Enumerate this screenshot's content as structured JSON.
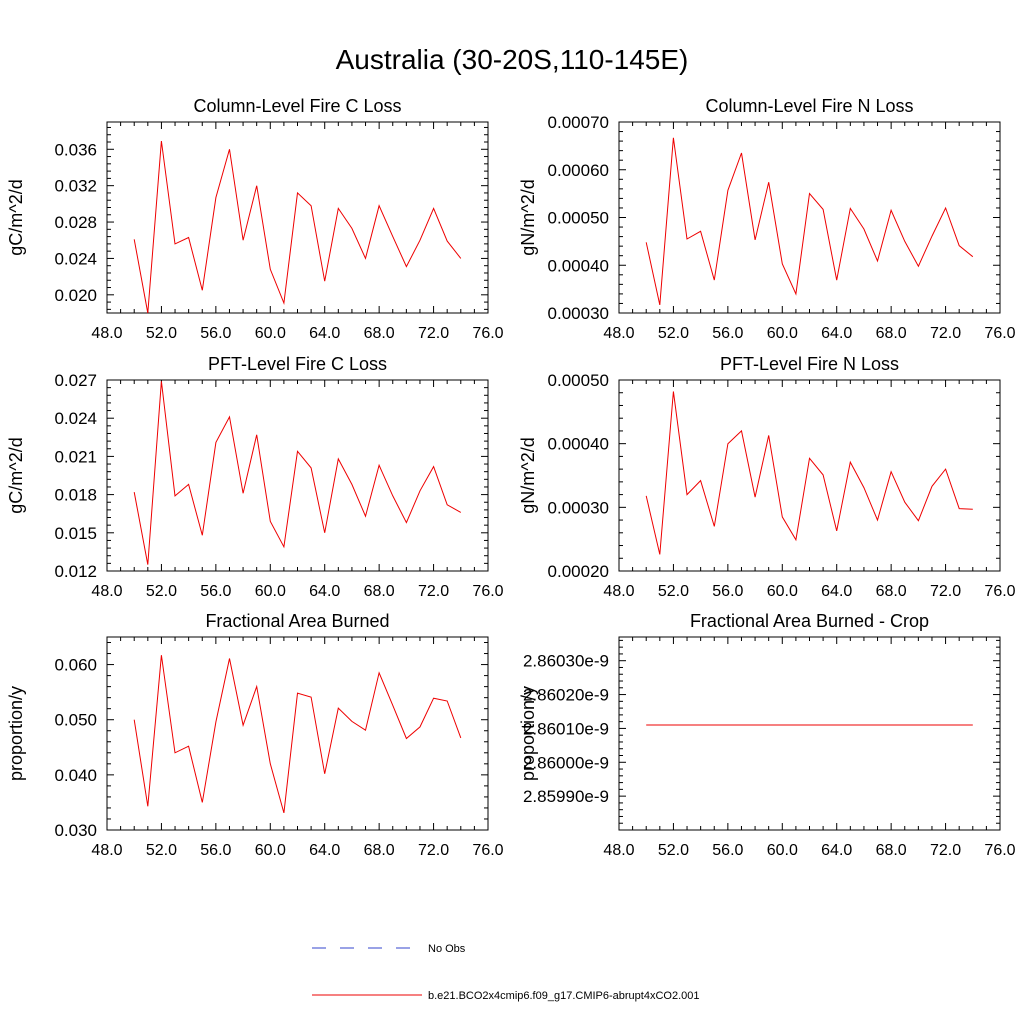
{
  "figure_title": "Australia (30-20S,110-145E)",
  "legend": {
    "obs_label": "No Obs",
    "obs_color": "#3344cc",
    "model_label": "b.e21.BCO2x4cmip6.f09_g17.CMIP6-abrupt4xCO2.001",
    "model_color": "#ee0000"
  },
  "chart_data": [
    {
      "type": "line",
      "title": "Column-Level Fire C Loss",
      "ylabel": "gC/m^2/d",
      "xlim": [
        48,
        76
      ],
      "ylim": [
        0.018,
        0.039
      ],
      "xticks": [
        48,
        52,
        56,
        60,
        64,
        68,
        72,
        76
      ],
      "xtick_labels": [
        "48.0",
        "52.0",
        "56.0",
        "60.0",
        "64.0",
        "68.0",
        "72.0",
        "76.0"
      ],
      "yticks": [
        0.02,
        0.024,
        0.028,
        0.032,
        0.036
      ],
      "ytick_labels": [
        "0.020",
        "0.024",
        "0.028",
        "0.032",
        "0.036"
      ],
      "series": [
        {
          "name": "b.e21.BCO2x4cmip6.f09_g17.CMIP6-abrupt4xCO2.001",
          "x": [
            50,
            51,
            52,
            53,
            54,
            55,
            56,
            57,
            58,
            59,
            60,
            61,
            62,
            63,
            64,
            65,
            66,
            67,
            68,
            69,
            70,
            71,
            72,
            73,
            74
          ],
          "values": [
            0.0261,
            0.018,
            0.0369,
            0.0256,
            0.0263,
            0.0205,
            0.0307,
            0.036,
            0.026,
            0.032,
            0.0228,
            0.0191,
            0.0312,
            0.0298,
            0.0215,
            0.0295,
            0.0273,
            0.024,
            0.0298,
            0.0264,
            0.0231,
            0.026,
            0.0295,
            0.0259,
            0.024
          ]
        }
      ]
    },
    {
      "type": "line",
      "title": "Column-Level Fire N Loss",
      "ylabel": "gN/m^2/d",
      "xlim": [
        48,
        76
      ],
      "ylim": [
        0.0003,
        0.0007
      ],
      "xticks": [
        48,
        52,
        56,
        60,
        64,
        68,
        72,
        76
      ],
      "xtick_labels": [
        "48.0",
        "52.0",
        "56.0",
        "60.0",
        "64.0",
        "68.0",
        "72.0",
        "76.0"
      ],
      "yticks": [
        0.0003,
        0.0004,
        0.0005,
        0.0006,
        0.0007
      ],
      "ytick_labels": [
        "0.00030",
        "0.00040",
        "0.00050",
        "0.00060",
        "0.00070"
      ],
      "series": [
        {
          "name": "b.e21.BCO2x4cmip6.f09_g17.CMIP6-abrupt4xCO2.001",
          "x": [
            50,
            51,
            52,
            53,
            54,
            55,
            56,
            57,
            58,
            59,
            60,
            61,
            62,
            63,
            64,
            65,
            66,
            67,
            68,
            69,
            70,
            71,
            72,
            73,
            74
          ],
          "values": [
            0.000448,
            0.000317,
            0.000667,
            0.000455,
            0.000471,
            0.000369,
            0.000557,
            0.000635,
            0.000453,
            0.000574,
            0.000403,
            0.00034,
            0.00055,
            0.000517,
            0.000369,
            0.000519,
            0.000476,
            0.000409,
            0.000515,
            0.00045,
            0.000398,
            0.000461,
            0.00052,
            0.000441,
            0.000418
          ]
        }
      ]
    },
    {
      "type": "line",
      "title": "PFT-Level Fire C Loss",
      "ylabel": "gC/m^2/d",
      "xlim": [
        48,
        76
      ],
      "ylim": [
        0.012,
        0.027
      ],
      "xticks": [
        48,
        52,
        56,
        60,
        64,
        68,
        72,
        76
      ],
      "xtick_labels": [
        "48.0",
        "52.0",
        "56.0",
        "60.0",
        "64.0",
        "68.0",
        "72.0",
        "76.0"
      ],
      "yticks": [
        0.012,
        0.015,
        0.018,
        0.021,
        0.024,
        0.027
      ],
      "ytick_labels": [
        "0.012",
        "0.015",
        "0.018",
        "0.021",
        "0.024",
        "0.027"
      ],
      "series": [
        {
          "name": "b.e21.BCO2x4cmip6.f09_g17.CMIP6-abrupt4xCO2.001",
          "x": [
            50,
            51,
            52,
            53,
            54,
            55,
            56,
            57,
            58,
            59,
            60,
            61,
            62,
            63,
            64,
            65,
            66,
            67,
            68,
            69,
            70,
            71,
            72,
            73,
            74
          ],
          "values": [
            0.0182,
            0.0125,
            0.0269,
            0.0179,
            0.0188,
            0.0148,
            0.0221,
            0.0241,
            0.0181,
            0.0227,
            0.0159,
            0.0139,
            0.0214,
            0.0201,
            0.015,
            0.0208,
            0.0188,
            0.0163,
            0.0203,
            0.0179,
            0.0158,
            0.0183,
            0.0202,
            0.0172,
            0.0166
          ]
        }
      ]
    },
    {
      "type": "line",
      "title": "PFT-Level Fire N Loss",
      "ylabel": "gN/m^2/d",
      "xlim": [
        48,
        76
      ],
      "ylim": [
        0.0002,
        0.0005
      ],
      "xticks": [
        48,
        52,
        56,
        60,
        64,
        68,
        72,
        76
      ],
      "xtick_labels": [
        "48.0",
        "52.0",
        "56.0",
        "60.0",
        "64.0",
        "68.0",
        "72.0",
        "76.0"
      ],
      "yticks": [
        0.0002,
        0.0003,
        0.0004,
        0.0005
      ],
      "ytick_labels": [
        "0.00020",
        "0.00030",
        "0.00040",
        "0.00050"
      ],
      "series": [
        {
          "name": "b.e21.BCO2x4cmip6.f09_g17.CMIP6-abrupt4xCO2.001",
          "x": [
            50,
            51,
            52,
            53,
            54,
            55,
            56,
            57,
            58,
            59,
            60,
            61,
            62,
            63,
            64,
            65,
            66,
            67,
            68,
            69,
            70,
            71,
            72,
            73,
            74
          ],
          "values": [
            0.000318,
            0.000226,
            0.000482,
            0.00032,
            0.000342,
            0.00027,
            0.0004,
            0.00042,
            0.000316,
            0.000413,
            0.000285,
            0.000249,
            0.000377,
            0.000351,
            0.000263,
            0.000371,
            0.000331,
            0.00028,
            0.000356,
            0.000308,
            0.000279,
            0.000333,
            0.00036,
            0.000298,
            0.000297
          ]
        }
      ]
    },
    {
      "type": "line",
      "title": "Fractional Area Burned",
      "ylabel": "proportion/y",
      "xlim": [
        48,
        76
      ],
      "ylim": [
        0.03,
        0.065
      ],
      "xticks": [
        48,
        52,
        56,
        60,
        64,
        68,
        72,
        76
      ],
      "xtick_labels": [
        "48.0",
        "52.0",
        "56.0",
        "60.0",
        "64.0",
        "68.0",
        "72.0",
        "76.0"
      ],
      "yticks": [
        0.03,
        0.04,
        0.05,
        0.06
      ],
      "ytick_labels": [
        "0.030",
        "0.040",
        "0.050",
        "0.060"
      ],
      "series": [
        {
          "name": "b.e21.BCO2x4cmip6.f09_g17.CMIP6-abrupt4xCO2.001",
          "x": [
            50,
            51,
            52,
            53,
            54,
            55,
            56,
            57,
            58,
            59,
            60,
            61,
            62,
            63,
            64,
            65,
            66,
            67,
            68,
            69,
            70,
            71,
            72,
            73,
            74
          ],
          "values": [
            0.05,
            0.0343,
            0.0617,
            0.044,
            0.0452,
            0.035,
            0.0496,
            0.0611,
            0.049,
            0.056,
            0.042,
            0.0331,
            0.0548,
            0.0541,
            0.0402,
            0.0521,
            0.0497,
            0.0481,
            0.0585,
            0.0526,
            0.0466,
            0.0487,
            0.0539,
            0.0534,
            0.0467
          ]
        }
      ]
    },
    {
      "type": "line",
      "title": "Fractional Area Burned - Crop",
      "ylabel": "proportion/y",
      "xlim": [
        48,
        76
      ],
      "ylim": [
        2.8598e-09,
        2.86037e-09
      ],
      "xticks": [
        48,
        52,
        56,
        60,
        64,
        68,
        72,
        76
      ],
      "xtick_labels": [
        "48.0",
        "52.0",
        "56.0",
        "60.0",
        "64.0",
        "68.0",
        "72.0",
        "76.0"
      ],
      "yticks": [
        2.8599e-09,
        2.86e-09,
        2.8601e-09,
        2.8602e-09,
        2.8603e-09
      ],
      "ytick_labels": [
        "2.85990e-9",
        "2.86000e-9",
        "2.86010e-9",
        "2.86020e-9",
        "2.86030e-9"
      ],
      "series": [
        {
          "name": "b.e21.BCO2x4cmip6.f09_g17.CMIP6-abrupt4xCO2.001",
          "x": [
            50,
            51,
            52,
            53,
            54,
            55,
            56,
            57,
            58,
            59,
            60,
            61,
            62,
            63,
            64,
            65,
            66,
            67,
            68,
            69,
            70,
            71,
            72,
            73,
            74
          ],
          "values": [
            2.86011e-09,
            2.86011e-09,
            2.86011e-09,
            2.86011e-09,
            2.86011e-09,
            2.86011e-09,
            2.86011e-09,
            2.86011e-09,
            2.86011e-09,
            2.86011e-09,
            2.86011e-09,
            2.86011e-09,
            2.86011e-09,
            2.86011e-09,
            2.86011e-09,
            2.86011e-09,
            2.86011e-09,
            2.86011e-09,
            2.86011e-09,
            2.86011e-09,
            2.86011e-09,
            2.86011e-09,
            2.86011e-09,
            2.86011e-09,
            2.86011e-09
          ]
        }
      ]
    }
  ]
}
